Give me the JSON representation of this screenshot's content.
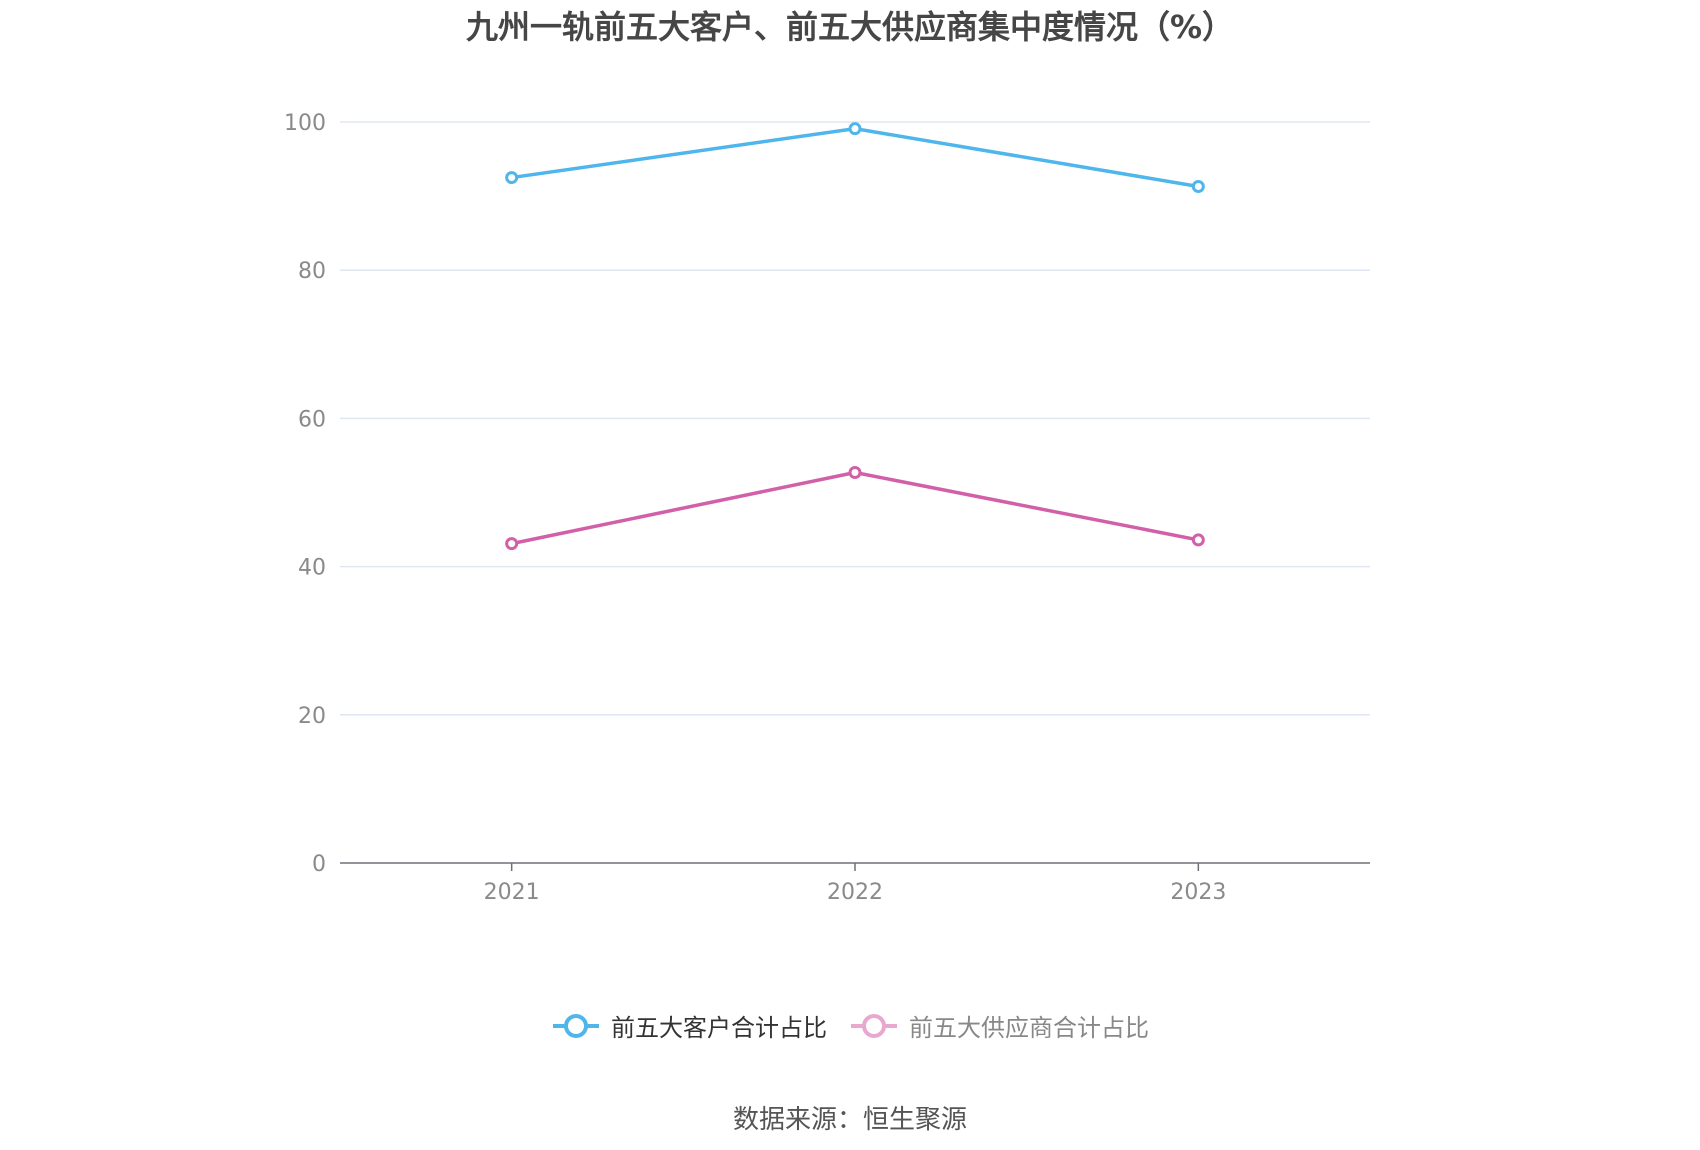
{
  "title": "九州一轨前五大客户、前五大供应商集中度情况（%）",
  "source": "数据来源：恒生聚源",
  "chart_data": {
    "type": "line",
    "title": "九州一轨前五大客户、前五大供应商集中度情况（%）",
    "xlabel": "",
    "ylabel": "",
    "categories": [
      "2021",
      "2022",
      "2023"
    ],
    "ylim": [
      0,
      100
    ],
    "yticks": [
      0,
      20,
      40,
      60,
      80,
      100
    ],
    "grid": true,
    "legend_position": "bottom",
    "series": [
      {
        "name": "前五大客户合计占比",
        "values": [
          92.5,
          99.1,
          91.3
        ],
        "color": "#4fb6ec"
      },
      {
        "name": "前五大供应商合计占比",
        "values": [
          43.1,
          52.7,
          43.6
        ],
        "color": "#d160a8"
      }
    ]
  },
  "legend": {
    "items": [
      {
        "label": "前五大客户合计占比",
        "color": "#4fb6ec",
        "icon": "circle-line-icon"
      },
      {
        "label": "前五大供应商合计占比",
        "color": "#e8a8d0",
        "icon": "circle-line-icon"
      }
    ]
  },
  "colors": {
    "axis": "#6e7079",
    "grid": "#e0e6f1",
    "tick_text": "#8a8a8a"
  }
}
